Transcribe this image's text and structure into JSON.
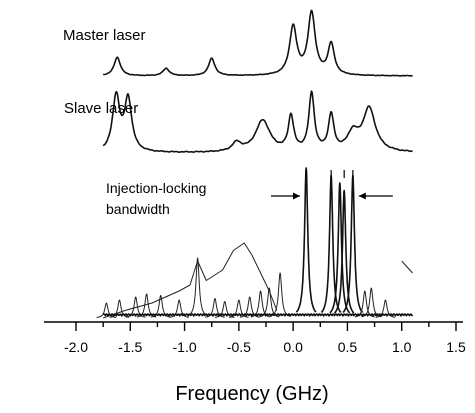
{
  "chart_data": {
    "type": "line",
    "xlabel": "Frequency (GHz)",
    "ylabel": "",
    "xlim": [
      -2.2,
      1.5
    ],
    "xticks": [
      "-2.0",
      "-1.5",
      "-1.0",
      "-0.5",
      "0.0",
      "0.5",
      "1.0",
      "1.5"
    ],
    "xtick_values": [
      -2.0,
      -1.5,
      -1.0,
      -0.5,
      0.0,
      0.5,
      1.0,
      1.5
    ],
    "grid": false,
    "legend": "none",
    "annotation": {
      "line1": "Injection-locking",
      "line2": "bandwidth",
      "x_from": 0.1,
      "x_to": 0.55
    },
    "series": [
      {
        "name": "Master laser",
        "kind": "trace",
        "baseline": 0.0,
        "peaks": [
          {
            "x": -1.62,
            "h": 0.3,
            "w": 0.035
          },
          {
            "x": -1.17,
            "h": 0.12,
            "w": 0.035
          },
          {
            "x": -0.75,
            "h": 0.28,
            "w": 0.035
          },
          {
            "x": 0.0,
            "h": 0.78,
            "w": 0.04
          },
          {
            "x": 0.17,
            "h": 1.0,
            "w": 0.04
          },
          {
            "x": 0.35,
            "h": 0.5,
            "w": 0.035
          }
        ],
        "x_range": [
          -1.75,
          1.1
        ]
      },
      {
        "name": "Slave laser",
        "kind": "trace",
        "baseline": 0.0,
        "peaks": [
          {
            "x": -1.63,
            "h": 0.95,
            "w": 0.04
          },
          {
            "x": -1.52,
            "h": 0.9,
            "w": 0.04
          },
          {
            "x": -0.52,
            "h": 0.15,
            "w": 0.05
          },
          {
            "x": -0.28,
            "h": 0.55,
            "w": 0.08
          },
          {
            "x": -0.02,
            "h": 0.6,
            "w": 0.03
          },
          {
            "x": 0.17,
            "h": 1.0,
            "w": 0.03
          },
          {
            "x": 0.35,
            "h": 0.62,
            "w": 0.03
          },
          {
            "x": 0.55,
            "h": 0.3,
            "w": 0.06
          },
          {
            "x": 0.7,
            "h": 0.75,
            "w": 0.07
          }
        ],
        "x_range": [
          -1.75,
          1.1
        ]
      },
      {
        "name": "",
        "kind": "injection-spectra",
        "peak_positions": [
          -1.72,
          -1.6,
          -1.45,
          -1.35,
          -1.22,
          -1.05,
          -0.88,
          -0.72,
          -0.63,
          -0.5,
          -0.4,
          -0.3,
          -0.22,
          -0.12,
          0.12,
          0.35,
          0.43,
          0.47,
          0.55,
          0.66,
          0.72,
          0.85
        ],
        "peak_heights": [
          0.1,
          0.12,
          0.14,
          0.16,
          0.15,
          0.12,
          0.4,
          0.13,
          0.11,
          0.12,
          0.14,
          0.18,
          0.2,
          0.3,
          1.0,
          0.95,
          0.9,
          0.85,
          0.95,
          0.18,
          0.2,
          0.12
        ],
        "envelope_x": [
          -1.75,
          -1.55,
          -1.3,
          -1.05,
          -0.95,
          -0.88,
          -0.8,
          -0.65,
          -0.55,
          -0.45,
          -0.38,
          -0.3,
          -0.22,
          -0.15,
          1.0,
          1.05,
          1.1
        ],
        "envelope_y": [
          0.0,
          0.05,
          0.1,
          0.18,
          0.22,
          0.38,
          0.25,
          0.32,
          0.45,
          0.5,
          0.42,
          0.3,
          0.18,
          0.05,
          0.38,
          0.34,
          0.3
        ]
      }
    ]
  }
}
